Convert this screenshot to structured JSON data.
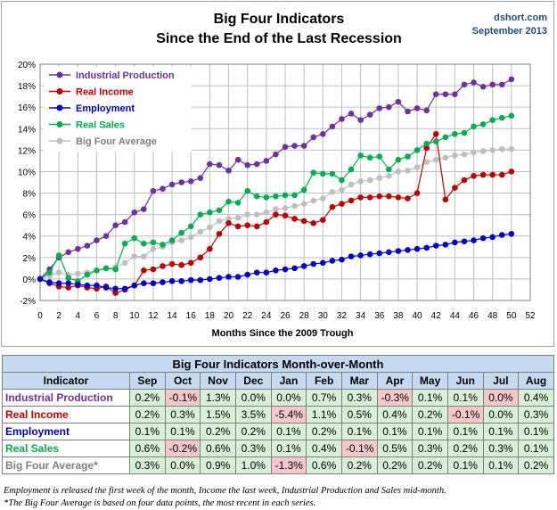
{
  "chart_data": {
    "type": "line",
    "title_lines": [
      "Big Four Indicators",
      "Since the End of the Last Recession"
    ],
    "source_lines": [
      "dshort.com",
      "September 2013"
    ],
    "xlabel": "Months Since the 2009 Trough",
    "xlim": [
      0,
      52
    ],
    "xticks": [
      "0",
      "2",
      "4",
      "6",
      "8",
      "10",
      "12",
      "14",
      "16",
      "18",
      "20",
      "22",
      "24",
      "26",
      "28",
      "30",
      "32",
      "34",
      "36",
      "38",
      "40",
      "42",
      "44",
      "46",
      "48",
      "50",
      "52"
    ],
    "ylim": [
      -2,
      20
    ],
    "yticks": [
      "-2%",
      "0%",
      "2%",
      "4%",
      "6%",
      "8%",
      "10%",
      "12%",
      "14%",
      "16%",
      "18%",
      "20%"
    ],
    "x": [
      0,
      1,
      2,
      3,
      4,
      5,
      6,
      7,
      8,
      9,
      10,
      11,
      12,
      13,
      14,
      15,
      16,
      17,
      18,
      19,
      20,
      21,
      22,
      23,
      24,
      25,
      26,
      27,
      28,
      29,
      30,
      31,
      32,
      33,
      34,
      35,
      36,
      37,
      38,
      39,
      40,
      41,
      42,
      43,
      44,
      45,
      46,
      47,
      48,
      49,
      50
    ],
    "series": [
      {
        "name": "Industrial Production",
        "color": "#7030a0",
        "values": [
          0,
          0.9,
          2.0,
          2.5,
          2.8,
          3.1,
          3.6,
          4.0,
          5.0,
          5.3,
          6.2,
          6.5,
          8.2,
          8.4,
          8.8,
          9.0,
          9.1,
          9.4,
          10.7,
          10.6,
          10.1,
          11.1,
          10.6,
          10.7,
          11.0,
          11.6,
          12.3,
          12.4,
          12.4,
          13.2,
          13.5,
          14.2,
          14.9,
          15.4,
          14.8,
          15.3,
          15.9,
          16.0,
          16.5,
          15.6,
          15.9,
          15.7,
          17.2,
          17.2,
          17.2,
          18.1,
          18.3,
          17.9,
          18.1,
          18.1,
          18.6
        ]
      },
      {
        "name": "Real Income",
        "color": "#c00000",
        "values": [
          0,
          -0.4,
          -0.7,
          -0.8,
          -0.6,
          -0.8,
          -0.9,
          -0.7,
          -1.3,
          -1.0,
          -0.6,
          0.8,
          0.9,
          1.2,
          1.4,
          1.3,
          1.5,
          2.0,
          2.8,
          4.2,
          5.2,
          4.9,
          5.0,
          4.9,
          5.3,
          6.0,
          5.9,
          5.6,
          5.4,
          5.2,
          5.5,
          6.7,
          7.0,
          7.3,
          7.6,
          7.6,
          7.7,
          7.7,
          7.6,
          7.5,
          8.0,
          12.2,
          13.5,
          7.4,
          8.5,
          9.2,
          9.6,
          9.7,
          9.7,
          9.7,
          10.0
        ]
      },
      {
        "name": "Employment",
        "color": "#0000cc",
        "values": [
          0,
          -0.3,
          -0.4,
          -0.4,
          -0.5,
          -0.6,
          -0.6,
          -0.8,
          -0.9,
          -0.9,
          -0.6,
          -0.4,
          -0.4,
          -0.3,
          -0.2,
          -0.2,
          -0.1,
          -0.1,
          0.0,
          0.1,
          0.2,
          0.2,
          0.4,
          0.6,
          0.6,
          0.8,
          0.9,
          1.0,
          1.2,
          1.4,
          1.5,
          1.7,
          1.8,
          2.1,
          2.2,
          2.3,
          2.4,
          2.5,
          2.6,
          2.7,
          2.8,
          2.9,
          3.1,
          3.2,
          3.4,
          3.5,
          3.6,
          3.8,
          3.9,
          4.1,
          4.2
        ]
      },
      {
        "name": "Real Sales",
        "color": "#00b050",
        "values": [
          0,
          0.6,
          2.2,
          0.1,
          -0.2,
          0.4,
          0.8,
          1.0,
          0.9,
          3.3,
          3.8,
          3.3,
          3.4,
          3.2,
          3.6,
          4.3,
          4.9,
          6.0,
          6.2,
          6.4,
          7.2,
          7.1,
          8.2,
          7.7,
          7.6,
          7.7,
          7.8,
          7.8,
          8.3,
          9.9,
          9.8,
          9.8,
          9.2,
          10.2,
          11.5,
          11.3,
          11.4,
          10.2,
          11.1,
          11.4,
          12.0,
          12.6,
          12.8,
          13.2,
          13.5,
          13.6,
          14.2,
          14.4,
          14.8,
          15.0,
          15.2
        ]
      },
      {
        "name": "Big Four Average",
        "color": "#bfbfbf",
        "values": [
          0,
          0.3,
          0.6,
          0.4,
          0.5,
          0.6,
          0.8,
          1.0,
          1.1,
          1.5,
          2.1,
          2.1,
          2.8,
          3.0,
          3.4,
          3.6,
          3.9,
          4.4,
          4.8,
          5.4,
          5.6,
          5.7,
          6.0,
          6.0,
          6.2,
          6.5,
          6.6,
          6.8,
          7.0,
          7.3,
          7.5,
          8.1,
          8.3,
          8.8,
          9.1,
          9.2,
          9.4,
          9.6,
          10.0,
          10.1,
          10.4,
          10.9,
          11.1,
          11.3,
          11.5,
          11.6,
          11.8,
          11.9,
          12.0,
          12.1,
          12.1
        ]
      }
    ],
    "legend_position": "top-left",
    "grid": true
  },
  "table": {
    "title": "Big Four Indicators Month-over-Month",
    "header_label": "Indicator",
    "months": [
      "Sep",
      "Oct",
      "Nov",
      "Dec",
      "Jan",
      "Feb",
      "Mar",
      "Apr",
      "May",
      "Jun",
      "Jul",
      "Aug"
    ],
    "rows": [
      {
        "label": "Industrial Production",
        "color": "#7030a0",
        "values": [
          "0.2%",
          "-0.1%",
          "1.3%",
          "0.0%",
          "0.0%",
          "0.7%",
          "0.3%",
          "-0.3%",
          "0.1%",
          "0.1%",
          "0.0%",
          "0.4%"
        ],
        "neg": [
          false,
          true,
          false,
          false,
          false,
          false,
          false,
          true,
          false,
          false,
          true,
          false
        ]
      },
      {
        "label": "Real Income",
        "color": "#c00000",
        "values": [
          "0.2%",
          "0.3%",
          "1.5%",
          "3.5%",
          "-5.4%",
          "1.1%",
          "0.5%",
          "0.4%",
          "0.2%",
          "-0.1%",
          "0.0%",
          "0.3%"
        ],
        "neg": [
          false,
          false,
          false,
          false,
          true,
          false,
          false,
          false,
          false,
          true,
          false,
          false
        ]
      },
      {
        "label": "Employment",
        "color": "#0000cc",
        "values": [
          "0.1%",
          "0.1%",
          "0.2%",
          "0.2%",
          "0.1%",
          "0.2%",
          "0.1%",
          "0.1%",
          "0.1%",
          "0.1%",
          "0.1%",
          "0.1%"
        ],
        "neg": [
          false,
          false,
          false,
          false,
          false,
          false,
          false,
          false,
          false,
          false,
          false,
          false
        ]
      },
      {
        "label": "Real Sales",
        "color": "#00b050",
        "values": [
          "0.6%",
          "-0.2%",
          "0.6%",
          "0.3%",
          "0.1%",
          "0.4%",
          "-0.1%",
          "0.5%",
          "0.3%",
          "0.2%",
          "0.3%",
          "0.1%"
        ],
        "neg": [
          false,
          true,
          false,
          false,
          false,
          false,
          true,
          false,
          false,
          false,
          false,
          false
        ]
      },
      {
        "label": "Big Four Average*",
        "color": "#7f7f7f",
        "values": [
          "0.3%",
          "0.0%",
          "0.9%",
          "1.0%",
          "-1.3%",
          "0.6%",
          "0.2%",
          "0.2%",
          "0.2%",
          "0.1%",
          "0.1%",
          "0.2%"
        ],
        "neg": [
          false,
          false,
          false,
          false,
          true,
          false,
          false,
          false,
          false,
          false,
          false,
          false
        ]
      }
    ]
  },
  "notes": [
    "Employment is released the first week of the month, Income the last week, Industrial Production and Sales mid-month.",
    "*The Big Four Average is based on four data points, the most recent in each series."
  ]
}
